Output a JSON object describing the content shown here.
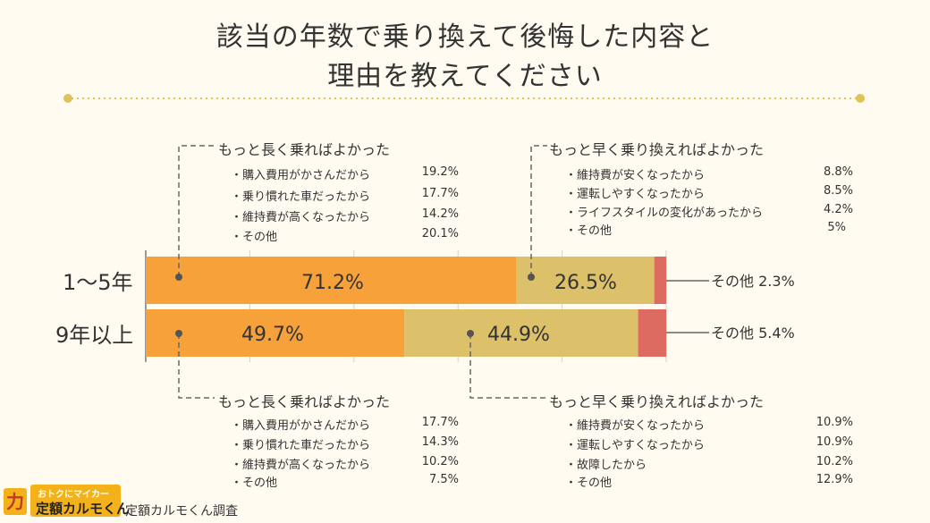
{
  "title_line1": "該当の年数で乗り換えて後悔した内容と",
  "title_line2": "理由を教えてください",
  "chart_data": {
    "type": "bar",
    "orientation": "horizontal-stacked",
    "categories": [
      "1～5年",
      "9年以上"
    ],
    "series": [
      {
        "name": "もっと長く乗ればよかった",
        "values": [
          71.2,
          49.7
        ],
        "labels": [
          "71.2%",
          "49.7%"
        ],
        "color": "#f7a13a"
      },
      {
        "name": "もっと早く乗り換えればよかった",
        "values": [
          26.5,
          44.9
        ],
        "labels": [
          "26.5%",
          "44.9%"
        ],
        "color": "#dcc06a"
      },
      {
        "name": "その他",
        "values": [
          2.3,
          5.4
        ],
        "labels": [
          "その他 2.3%",
          "その他 5.4%"
        ],
        "color": "#dd6b62"
      }
    ],
    "xlim": [
      0,
      100
    ],
    "grid": true
  },
  "groups": {
    "top_left": {
      "title": "もっと長く乗ればよかった",
      "reasons": [
        {
          "label": "・購入費用がかさんだから",
          "pct": "19.2%"
        },
        {
          "label": "・乗り慣れた車だったから",
          "pct": "17.7%"
        },
        {
          "label": "・維持費が高くなったから",
          "pct": "14.2%"
        },
        {
          "label": "・その他",
          "pct": "20.1%"
        }
      ]
    },
    "top_right": {
      "title": "もっと早く乗り換えればよかった",
      "reasons": [
        {
          "label": "・維持費が安くなったから",
          "pct": "8.8%"
        },
        {
          "label": "・運転しやすくなったから",
          "pct": "8.5%"
        },
        {
          "label": "・ライフスタイルの変化があったから",
          "pct": "4.2%"
        },
        {
          "label": "・その他",
          "pct": "5%"
        }
      ]
    },
    "bottom_left": {
      "title": "もっと長く乗ればよかった",
      "reasons": [
        {
          "label": "・購入費用がかさんだから",
          "pct": "17.7%"
        },
        {
          "label": "・乗り慣れた車だったから",
          "pct": "14.3%"
        },
        {
          "label": "・維持費が高くなったから",
          "pct": "10.2%"
        },
        {
          "label": "・その他",
          "pct": "7.5%"
        }
      ]
    },
    "bottom_right": {
      "title": "もっと早く乗り換えればよかった",
      "reasons": [
        {
          "label": "・維持費が安くなったから",
          "pct": "10.9%"
        },
        {
          "label": "・運転しやすくなったから",
          "pct": "10.9%"
        },
        {
          "label": "・故障したから",
          "pct": "10.2%"
        },
        {
          "label": "・その他",
          "pct": "12.9%"
        }
      ]
    }
  },
  "footer": {
    "logo_line1": "おトクにマイカー",
    "logo_line2": "定額カルモくん",
    "source": "定額カルモくん調査"
  }
}
